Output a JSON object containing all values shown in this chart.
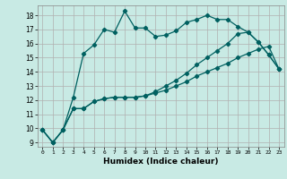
{
  "xlabel": "Humidex (Indice chaleur)",
  "bg_color": "#c8eae4",
  "grid_color": "#b0b0b0",
  "line_color": "#006060",
  "xlim": [
    -0.5,
    23.5
  ],
  "ylim": [
    8.7,
    18.7
  ],
  "xticks": [
    0,
    1,
    2,
    3,
    4,
    5,
    6,
    7,
    8,
    9,
    10,
    11,
    12,
    13,
    14,
    15,
    16,
    17,
    18,
    19,
    20,
    21,
    22,
    23
  ],
  "yticks": [
    9,
    10,
    11,
    12,
    13,
    14,
    15,
    16,
    17,
    18
  ],
  "line1_x": [
    0,
    1,
    2,
    3,
    4,
    5,
    6,
    7,
    8,
    9,
    10,
    11,
    12,
    13,
    14,
    15,
    16,
    17,
    18,
    19,
    20,
    21,
    22,
    23
  ],
  "line1_y": [
    9.9,
    9.0,
    9.9,
    12.2,
    15.3,
    15.9,
    17.0,
    16.8,
    18.3,
    17.1,
    17.1,
    16.5,
    16.6,
    16.9,
    17.5,
    17.7,
    18.0,
    17.7,
    17.7,
    17.2,
    16.8,
    16.1,
    15.2,
    14.2
  ],
  "line2_x": [
    0,
    1,
    2,
    3,
    4,
    5,
    6,
    7,
    8,
    9,
    10,
    11,
    12,
    13,
    14,
    15,
    16,
    17,
    18,
    19,
    20,
    21,
    22,
    23
  ],
  "line2_y": [
    9.9,
    9.0,
    9.9,
    11.4,
    11.4,
    11.9,
    12.1,
    12.2,
    12.2,
    12.2,
    12.3,
    12.5,
    12.7,
    13.0,
    13.3,
    13.7,
    14.0,
    14.3,
    14.6,
    15.0,
    15.3,
    15.6,
    15.8,
    14.2
  ],
  "line3_x": [
    0,
    1,
    2,
    3,
    4,
    5,
    6,
    7,
    8,
    9,
    10,
    11,
    12,
    13,
    14,
    15,
    16,
    17,
    18,
    19,
    20,
    21,
    22,
    23
  ],
  "line3_y": [
    9.9,
    9.0,
    9.9,
    11.4,
    11.4,
    11.9,
    12.1,
    12.2,
    12.2,
    12.2,
    12.3,
    12.6,
    13.0,
    13.4,
    13.9,
    14.5,
    15.0,
    15.5,
    16.0,
    16.7,
    16.8,
    16.1,
    15.2,
    14.2
  ]
}
